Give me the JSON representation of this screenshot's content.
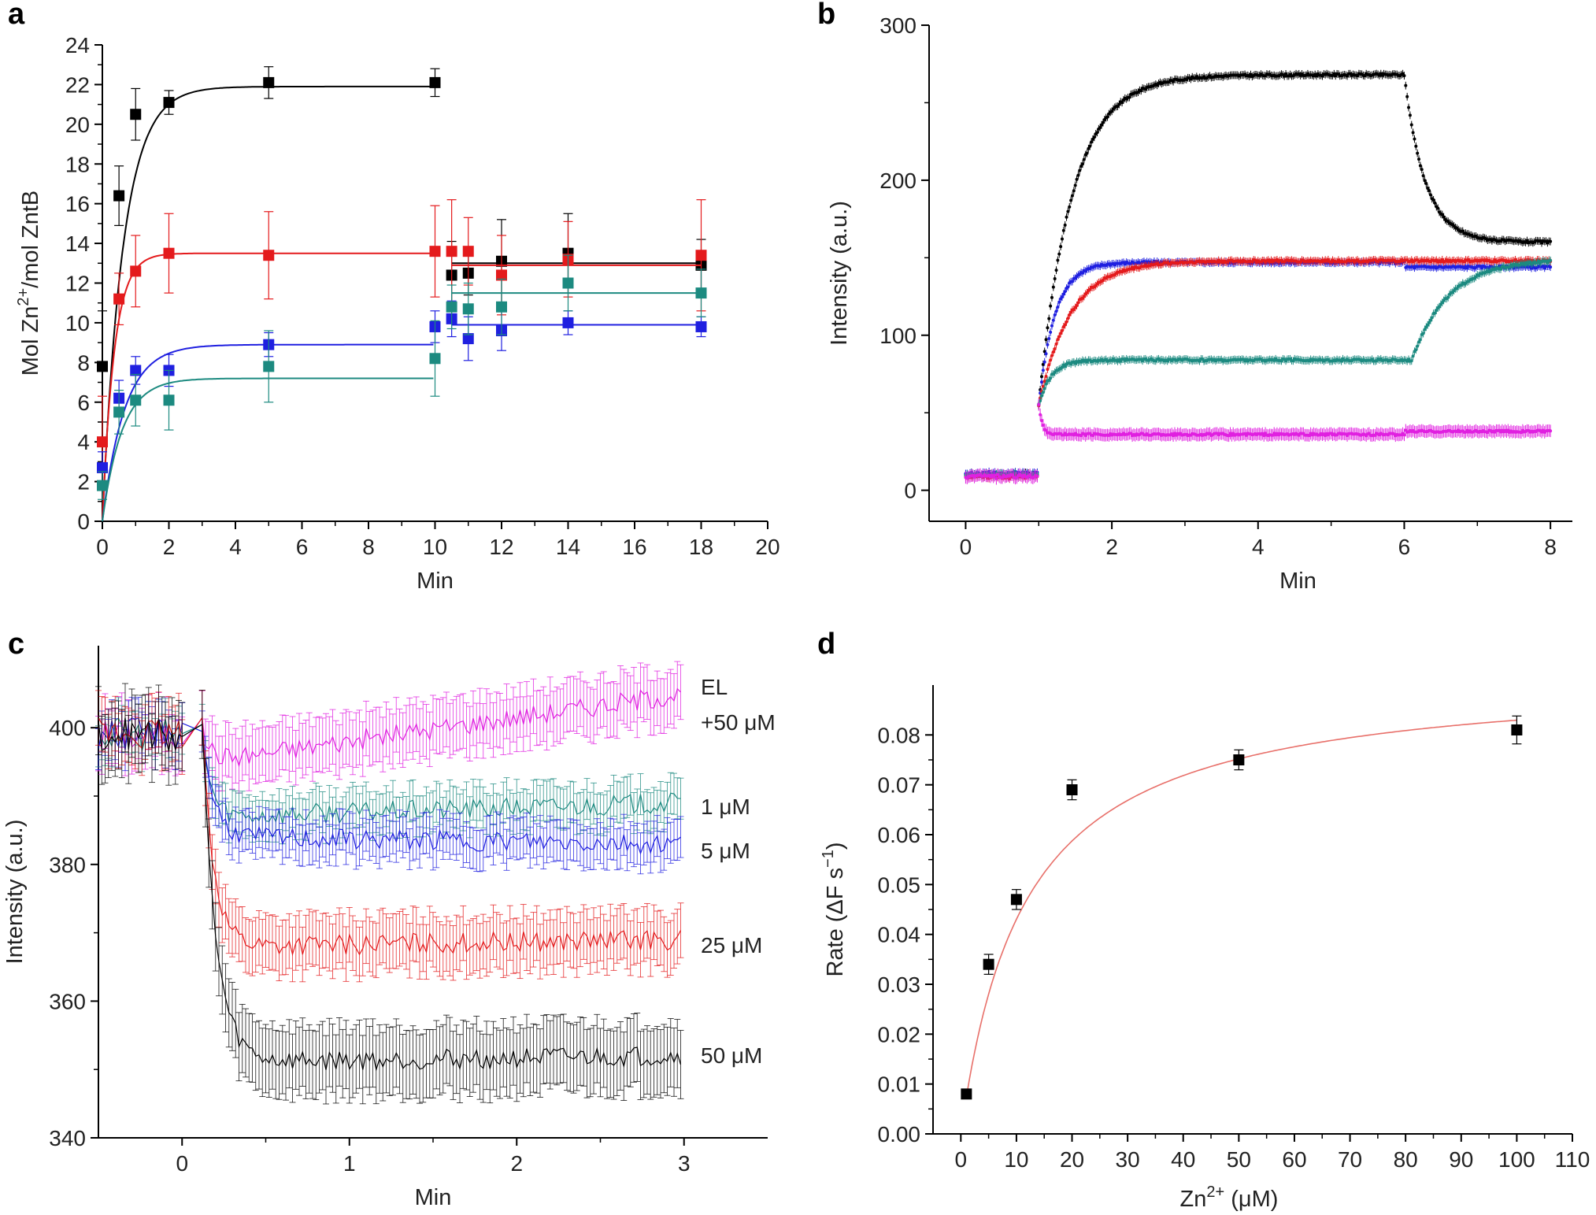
{
  "chart_data": [
    {
      "panel": "a",
      "type": "scatter",
      "xlabel": "Min",
      "ylabel_parts": [
        "Mol Zn",
        "2+",
        "/mol ZntB"
      ],
      "xlim": [
        0,
        20
      ],
      "ylim": [
        0,
        24
      ],
      "xticks": [
        0,
        2,
        4,
        6,
        8,
        10,
        12,
        14,
        16,
        18,
        20
      ],
      "yticks": [
        0,
        2,
        4,
        6,
        8,
        10,
        12,
        14,
        16,
        18,
        20,
        22,
        24
      ],
      "series": [
        {
          "name": "black",
          "color": "#000000",
          "x": [
            0,
            0.5,
            1,
            2,
            5,
            10
          ],
          "y": [
            7.8,
            16.4,
            20.5,
            21.1,
            22.1,
            22.1
          ],
          "err": [
            2.8,
            1.5,
            1.3,
            0.6,
            0.8,
            0.7
          ],
          "x2": [
            10.5,
            11,
            12,
            14,
            18
          ],
          "y2": [
            12.4,
            12.5,
            13.1,
            13.5,
            12.9
          ],
          "err2": [
            1.7,
            1.1,
            2.1,
            2.0,
            1.3
          ],
          "fit_plateau": 21.9,
          "fit_rate": 1.6,
          "fit2_level": 13.0
        },
        {
          "name": "red",
          "color": "#e41a1c",
          "x": [
            0,
            0.5,
            1,
            2,
            5,
            10
          ],
          "y": [
            4.0,
            11.2,
            12.6,
            13.5,
            13.4,
            13.6
          ],
          "err": [
            2.3,
            1.3,
            1.8,
            2.0,
            2.2,
            2.3
          ],
          "x2": [
            10.5,
            11,
            12,
            14,
            18
          ],
          "y2": [
            13.6,
            13.6,
            12.4,
            13.2,
            13.4
          ],
          "err2": [
            2.6,
            1.7,
            2.0,
            1.9,
            2.8
          ],
          "fit_plateau": 13.5,
          "fit_rate": 2.8,
          "fit2_level": 12.9
        },
        {
          "name": "blue",
          "color": "#1f1fe0",
          "x": [
            0,
            0.5,
            1,
            2,
            5,
            10
          ],
          "y": [
            2.7,
            6.2,
            7.6,
            7.6,
            8.9,
            9.8
          ],
          "err": [
            0.8,
            0.9,
            0.7,
            0.8,
            0.6,
            0.8
          ],
          "x2": [
            10.5,
            11,
            12,
            14,
            18
          ],
          "y2": [
            10.2,
            9.2,
            9.6,
            10.0,
            9.8
          ],
          "err2": [
            0.9,
            1.1,
            1.0,
            0.6,
            0.5
          ],
          "fit_plateau": 8.9,
          "fit_rate": 1.5,
          "fit2_level": 9.9
        },
        {
          "name": "teal",
          "color": "#1c8a80",
          "x": [
            0,
            0.5,
            1,
            2,
            5,
            10
          ],
          "y": [
            1.8,
            5.5,
            6.1,
            6.1,
            7.8,
            8.2
          ],
          "err": [
            0.7,
            1.1,
            1.3,
            1.5,
            1.8,
            1.9
          ],
          "x2": [
            10.5,
            11,
            12,
            14,
            18
          ],
          "y2": [
            10.8,
            10.7,
            10.8,
            12.0,
            11.5
          ],
          "err2": [
            1.1,
            1.3,
            1.4,
            1.4,
            1.2
          ],
          "fit_plateau": 7.2,
          "fit_rate": 1.7,
          "fit2_level": 11.5
        }
      ]
    },
    {
      "panel": "b",
      "type": "scatter",
      "xlabel": "Min",
      "ylabel": "Intensity (a.u.)",
      "xlim": [
        -0.5,
        8.3
      ],
      "ylim": [
        -20,
        300
      ],
      "xticks": [
        0,
        2,
        4,
        6,
        8
      ],
      "yticks": [
        0,
        100,
        200,
        300
      ],
      "series": [
        {
          "name": "black",
          "color": "#000000",
          "base": 10,
          "plateau": 268,
          "rate": 2.2,
          "after6": 160,
          "after_rate": 3.5
        },
        {
          "name": "blue",
          "color": "#1f1fe0",
          "base": 11,
          "plateau": 147,
          "rate": 4.5,
          "after6": 144,
          "after_rate": 0
        },
        {
          "name": "red",
          "color": "#e41a1c",
          "base": 9,
          "plateau": 148,
          "rate": 2.3,
          "after6": 148,
          "after_rate": 0
        },
        {
          "name": "teal",
          "color": "#1c8a80",
          "base": 10,
          "plateau": 84,
          "rate": 6.0,
          "after6": 149,
          "after_rate": 2.0
        },
        {
          "name": "magenta",
          "color": "#e020e0",
          "base": 9,
          "plateau": 36,
          "rate": 20,
          "after6": 38,
          "after_rate": 0
        }
      ]
    },
    {
      "panel": "c",
      "type": "line",
      "xlabel": "Min",
      "ylabel": "Intensity (a.u.)",
      "xlim": [
        -0.5,
        3.5
      ],
      "ylim": [
        340,
        412
      ],
      "xticks": [
        0,
        1,
        2,
        3
      ],
      "yticks": [
        340,
        360,
        380,
        400
      ],
      "series": [
        {
          "name": "EL +50 μM",
          "label_lines": [
            "EL",
            "+50 μM"
          ],
          "color": "#e020e0",
          "min_level": 395,
          "end_level": 405,
          "rate": 20,
          "err": 4
        },
        {
          "name": "1 μM",
          "label_lines": [
            "1 μM"
          ],
          "color": "#1c8a80",
          "min_level": 387,
          "end_level": 389,
          "rate": 20,
          "err": 3
        },
        {
          "name": "5 μM",
          "label_lines": [
            "5 μM"
          ],
          "color": "#1f1fe0",
          "min_level": 384,
          "end_level": 383,
          "rate": 15,
          "err": 3
        },
        {
          "name": "25 μM",
          "label_lines": [
            "25 μM"
          ],
          "color": "#e41a1c",
          "min_level": 368,
          "end_level": 369,
          "rate": 14,
          "err": 4
        },
        {
          "name": "50 μM",
          "label_lines": [
            "50 μM"
          ],
          "color": "#000000",
          "min_level": 351,
          "end_level": 352,
          "rate": 12,
          "err": 5
        }
      ]
    },
    {
      "panel": "d",
      "type": "scatter",
      "xlabel_parts": [
        "Zn",
        "2+",
        " (μM)"
      ],
      "ylabel_parts": [
        "Rate (ΔF s",
        "−1",
        ")"
      ],
      "xlim": [
        -5,
        110
      ],
      "ylim": [
        0,
        0.09
      ],
      "xticks": [
        0,
        10,
        20,
        30,
        40,
        50,
        60,
        70,
        80,
        90,
        100,
        110
      ],
      "yticks": [
        0.0,
        0.01,
        0.02,
        0.03,
        0.04,
        0.05,
        0.06,
        0.07,
        0.08
      ],
      "points": {
        "x": [
          1,
          5,
          10,
          20,
          50,
          100
        ],
        "y": [
          0.008,
          0.034,
          0.047,
          0.069,
          0.075,
          0.081
        ],
        "err": [
          0.0005,
          0.002,
          0.002,
          0.002,
          0.002,
          0.0028
        ]
      },
      "fit": {
        "vmax": 0.0925,
        "km": 11.5,
        "color": "#e8706a"
      }
    }
  ]
}
